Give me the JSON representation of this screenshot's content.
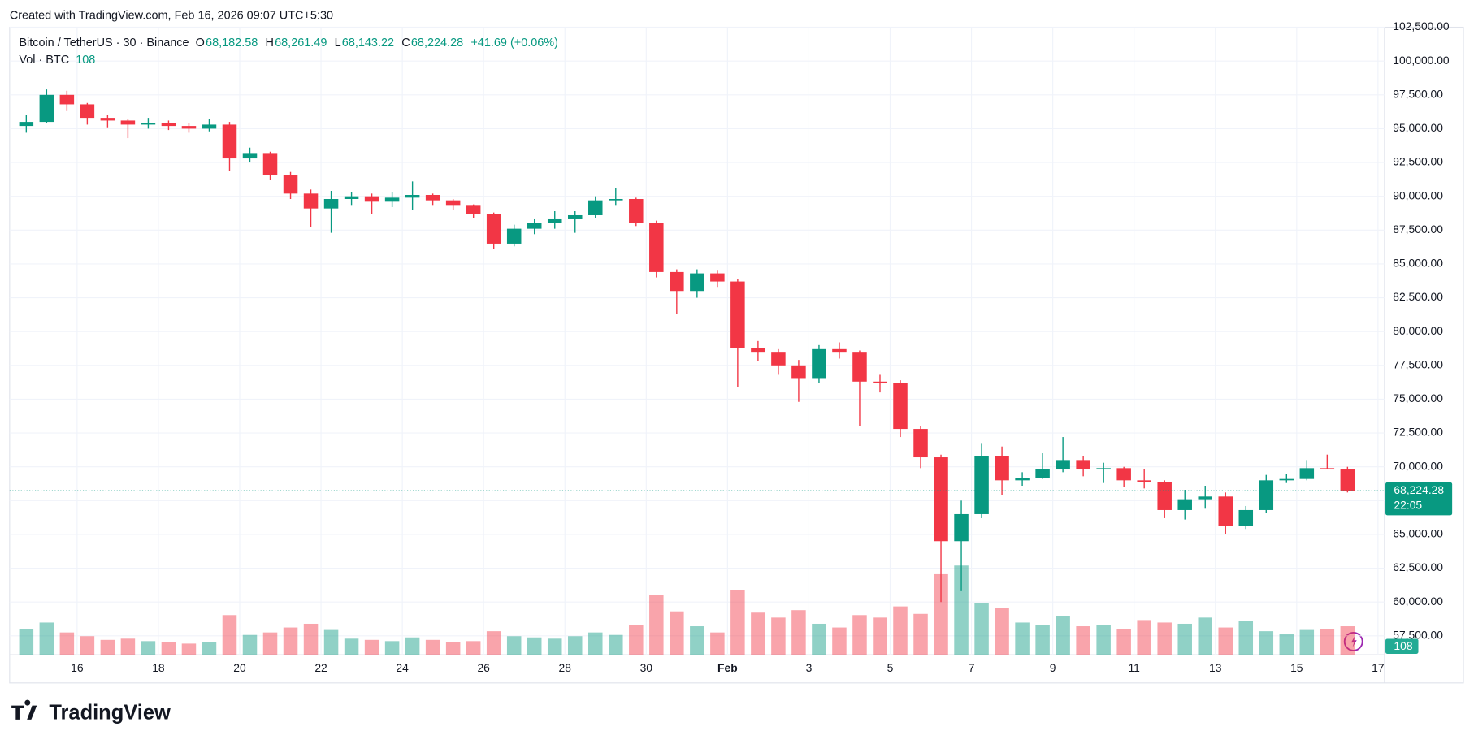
{
  "header": {
    "created": "Created with TradingView.com, Feb 16, 2026 09:07 UTC+5:30",
    "symbol": "Bitcoin / TetherUS · 30 · Binance",
    "open_label": "O",
    "open": "68,182.58",
    "high_label": "H",
    "high": "68,261.49",
    "low_label": "L",
    "low": "68,143.22",
    "close_label": "C",
    "close": "68,224.28",
    "change": "+41.69 (+0.06%)",
    "volume_label": "Vol · BTC"
  },
  "brand": "TradingView",
  "chart_data": {
    "type": "candlestick",
    "x": [
      14.5,
      15,
      15.5,
      16,
      16.5,
      17,
      17.5,
      18,
      18.5,
      19,
      19.5,
      20,
      20.5,
      21,
      21.5,
      22,
      22.5,
      23,
      23.5,
      24,
      24.5,
      25,
      25.5,
      26,
      26.5,
      27,
      27.5,
      28,
      28.5,
      29,
      29.5,
      30,
      30.5,
      31,
      31.5,
      32,
      32.5,
      33,
      33.5,
      34,
      34.5,
      35,
      35.5,
      36,
      36.5,
      37,
      37.5,
      38,
      38.5,
      39,
      39.5,
      40,
      40.5,
      41,
      41.5,
      42,
      42.5,
      43,
      43.5,
      44,
      44.5,
      45,
      45.5,
      46,
      46.5,
      47
    ],
    "open": [
      95200,
      95500,
      97500,
      96800,
      95800,
      95600,
      95300,
      95400,
      95200,
      95000,
      95300,
      92800,
      93200,
      91600,
      90200,
      89100,
      89800,
      90000,
      89600,
      89900,
      90100,
      89700,
      89300,
      88700,
      86500,
      87600,
      88000,
      88300,
      88600,
      89700,
      89800,
      88000,
      84400,
      83000,
      84300,
      83700,
      78800,
      78500,
      77500,
      76500,
      78700,
      78500,
      76300,
      76200,
      72800,
      70700,
      64500,
      66500,
      70800,
      69000,
      69200,
      69800,
      70500,
      69800,
      69900,
      69000,
      68900,
      66800,
      67600,
      67800,
      65600,
      66800,
      69000,
      69100,
      69900,
      69800
    ],
    "high": [
      96000,
      97900,
      97800,
      96900,
      96000,
      95700,
      95800,
      95600,
      95400,
      95700,
      95500,
      93600,
      93300,
      91800,
      90500,
      90400,
      90300,
      90200,
      90300,
      91100,
      90200,
      89800,
      89400,
      88800,
      87900,
      88300,
      88900,
      88900,
      90000,
      90600,
      89900,
      88200,
      84600,
      84600,
      84500,
      83900,
      79300,
      78700,
      77900,
      79000,
      79200,
      78600,
      76800,
      76400,
      73000,
      70900,
      67500,
      71700,
      71500,
      69600,
      71000,
      72200,
      70800,
      70300,
      70000,
      69800,
      69000,
      68300,
      68600,
      68100,
      67100,
      69400,
      69500,
      70500,
      70900,
      70000
    ],
    "low": [
      94700,
      95400,
      96300,
      95300,
      95100,
      94300,
      95000,
      94900,
      94700,
      94800,
      91900,
      92500,
      91200,
      89800,
      87700,
      87300,
      89300,
      88700,
      89200,
      89000,
      89300,
      89000,
      88400,
      86100,
      86300,
      87200,
      87600,
      87300,
      88400,
      89300,
      87800,
      84000,
      81300,
      82500,
      83300,
      75900,
      77800,
      76800,
      74800,
      76200,
      78000,
      73000,
      75500,
      72200,
      69900,
      60000,
      60800,
      66200,
      67900,
      68600,
      69100,
      69600,
      69300,
      68800,
      68500,
      68400,
      66200,
      66100,
      66900,
      65000,
      65400,
      66600,
      68800,
      69000,
      69800,
      68100
    ],
    "close": [
      95500,
      97500,
      96800,
      95800,
      95600,
      95300,
      95400,
      95200,
      95000,
      95300,
      92800,
      93200,
      91600,
      90200,
      89100,
      89800,
      90000,
      89600,
      89900,
      90100,
      89700,
      89300,
      88700,
      86500,
      87600,
      88000,
      88300,
      88600,
      89700,
      89800,
      88000,
      84400,
      83000,
      84300,
      83700,
      78800,
      78500,
      77500,
      76500,
      78700,
      78500,
      76300,
      76200,
      72800,
      70700,
      64500,
      66500,
      70800,
      69000,
      69200,
      69800,
      70500,
      69800,
      69900,
      69000,
      68900,
      66800,
      67600,
      67800,
      65600,
      66800,
      69000,
      69100,
      69900,
      69800,
      68224.28
    ],
    "volume": [
      2100,
      2600,
      1800,
      1500,
      1200,
      1300,
      1100,
      1000,
      900,
      1000,
      3200,
      1600,
      1800,
      2200,
      2500,
      2000,
      1300,
      1200,
      1100,
      1400,
      1200,
      1000,
      1100,
      1900,
      1500,
      1400,
      1300,
      1500,
      1800,
      1600,
      2400,
      4800,
      3500,
      2300,
      1800,
      5200,
      3400,
      3000,
      3600,
      2500,
      2200,
      3200,
      3000,
      3900,
      3300,
      6500,
      7200,
      4200,
      3800,
      2600,
      2400,
      3100,
      2300,
      2400,
      2100,
      2800,
      2600,
      2500,
      3000,
      2200,
      2700,
      1900,
      1700,
      2000,
      2100,
      2300
    ],
    "last_volume": 108,
    "up_color": "#089981",
    "down_color": "#f23645",
    "xlim": [
      14.34,
      48.16
    ],
    "xticks": [
      16,
      18,
      20,
      22,
      24,
      26,
      28,
      30,
      {
        "value": 32,
        "label": "Feb"
      },
      {
        "value": 34,
        "label": "3"
      },
      {
        "value": 36,
        "label": "5"
      },
      {
        "value": 38,
        "label": "7"
      },
      {
        "value": 40,
        "label": "9"
      },
      {
        "value": 42,
        "label": "11"
      },
      {
        "value": 44,
        "label": "13"
      },
      {
        "value": 46,
        "label": "15"
      },
      {
        "value": 48,
        "label": "17"
      }
    ],
    "ylim": [
      56100,
      102500
    ],
    "yticks": [
      {
        "value": 57500,
        "label": "57,500.00"
      },
      {
        "value": 60000,
        "label": "60,000.00"
      },
      {
        "value": 62500,
        "label": "62,500.00"
      },
      {
        "value": 65000,
        "label": "65,000.00"
      },
      {
        "value": 67500,
        "label": "67,500.00"
      },
      {
        "value": 70000,
        "label": "70,000.00"
      },
      {
        "value": 72500,
        "label": "72,500.00"
      },
      {
        "value": 75000,
        "label": "75,000.00"
      },
      {
        "value": 77500,
        "label": "77,500.00"
      },
      {
        "value": 80000,
        "label": "80,000.00"
      },
      {
        "value": 82500,
        "label": "82,500.00"
      },
      {
        "value": 85000,
        "label": "85,000.00"
      },
      {
        "value": 87500,
        "label": "87,500.00"
      },
      {
        "value": 90000,
        "label": "90,000.00"
      },
      {
        "value": 92500,
        "label": "92,500.00"
      },
      {
        "value": 95000,
        "label": "95,000.00"
      },
      {
        "value": 97500,
        "label": "97,500.00"
      },
      {
        "value": 100000,
        "label": "100,000.00"
      },
      {
        "value": 102500,
        "label": "102,500.00"
      }
    ],
    "last_price": {
      "value": 68224.28,
      "label": "68,224.28"
    },
    "countdown": "22:05",
    "grid": true
  }
}
